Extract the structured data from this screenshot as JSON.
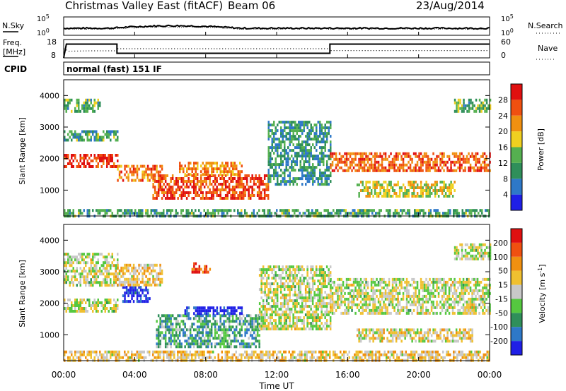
{
  "header": {
    "radar": "Christmas Valley East (fitACF)",
    "beam": "Beam 06",
    "date": "23/Aug/2014"
  },
  "nsky_panel": {
    "left_label": "N.Sky",
    "right_label": "N.Search",
    "left_ticks": [
      "10^5",
      "10^0"
    ],
    "right_ticks": [
      "10^5",
      "10^0"
    ]
  },
  "freq_panel": {
    "left_label_line1": "Freq.",
    "left_label_line2": "[MHz]",
    "right_label": "Nave",
    "left_ticks": [
      "18",
      "8"
    ],
    "right_ticks": [
      "60",
      "0"
    ],
    "freq_mhz": [
      [
        0.0,
        8
      ],
      [
        0.15,
        15.5
      ],
      [
        3.0,
        15.5
      ],
      [
        3.0,
        10.5
      ],
      [
        15.0,
        10.5
      ],
      [
        15.0,
        15.5
      ],
      [
        24.0,
        15.5
      ]
    ],
    "nave": [
      [
        0.0,
        30
      ],
      [
        0.3,
        22
      ],
      [
        1.5,
        23
      ],
      [
        3.0,
        23
      ],
      [
        3.0,
        30
      ],
      [
        15.0,
        30
      ],
      [
        15.0,
        24
      ],
      [
        24.0,
        24
      ]
    ]
  },
  "cpid": {
    "label": "CPID",
    "value": "normal (fast) 151 IF"
  },
  "x_axis": {
    "label": "Time UT",
    "ticks": [
      "00:00",
      "04:00",
      "08:00",
      "12:00",
      "16:00",
      "20:00",
      "00:00"
    ],
    "range_hours": [
      0,
      24
    ]
  },
  "chart_data": [
    {
      "type": "heatmap",
      "title": "Power",
      "xlabel": "Time UT",
      "ylabel": "Slant Range [km]",
      "ylim": [
        180,
        4500
      ],
      "yticks": [
        "1000",
        "2000",
        "3000",
        "4000"
      ],
      "colorbar": {
        "label": "Power [dB]",
        "ticks": [
          "4",
          "8",
          "12",
          "16",
          "20",
          "24",
          "28"
        ],
        "colors": [
          "#1f1fe6",
          "#2e78c8",
          "#2f8f5a",
          "#55b050",
          "#f0d020",
          "#f09010",
          "#f05010",
          "#e01010"
        ]
      },
      "echo_regions": [
        {
          "t0": 0.0,
          "t1": 3.0,
          "r0": 1750,
          "r1": 2150,
          "level": 0.9
        },
        {
          "t0": 0.0,
          "t1": 3.0,
          "r0": 2600,
          "r1": 2900,
          "level": 0.35
        },
        {
          "t0": 0.0,
          "t1": 2.0,
          "r0": 3500,
          "r1": 3900,
          "level": 0.4
        },
        {
          "t0": 3.0,
          "t1": 5.5,
          "r0": 1300,
          "r1": 1800,
          "level": 0.75
        },
        {
          "t0": 5.0,
          "t1": 11.5,
          "r0": 700,
          "r1": 1500,
          "level": 0.85
        },
        {
          "t0": 6.5,
          "t1": 10.0,
          "r0": 1500,
          "r1": 1900,
          "level": 0.7
        },
        {
          "t0": 11.5,
          "t1": 15.0,
          "r0": 1200,
          "r1": 3200,
          "level": 0.3
        },
        {
          "t0": 15.0,
          "t1": 24.0,
          "r0": 1600,
          "r1": 2200,
          "level": 0.8
        },
        {
          "t0": 16.5,
          "t1": 22.0,
          "r0": 800,
          "r1": 1300,
          "level": 0.55
        },
        {
          "t0": 22.0,
          "t1": 24.0,
          "r0": 3500,
          "r1": 3900,
          "level": 0.4
        },
        {
          "t0": 0.0,
          "t1": 24.0,
          "r0": 200,
          "r1": 400,
          "level": 0.35
        }
      ]
    },
    {
      "type": "heatmap",
      "title": "Velocity",
      "xlabel": "Time UT",
      "ylabel": "Slant Range [km]",
      "ylim": [
        180,
        4500
      ],
      "yticks": [
        "1000",
        "2000",
        "3000",
        "4000"
      ],
      "colorbar": {
        "label": "Velocity [m s^-1]",
        "ticks": [
          "200",
          "100",
          "50",
          "15",
          "-15",
          "-50",
          "-100",
          "-200"
        ],
        "colors": [
          "#1f1fe6",
          "#2e78c8",
          "#2f8f5a",
          "#55c840",
          "#c8c8c8",
          "#f0c030",
          "#f09010",
          "#f05010",
          "#e01010"
        ]
      },
      "echo_regions": [
        {
          "t0": 0.0,
          "t1": 3.0,
          "r0": 1750,
          "r1": 2150,
          "level": 0.5
        },
        {
          "t0": 0.0,
          "t1": 3.0,
          "r0": 2600,
          "r1": 3600,
          "level": 0.5
        },
        {
          "t0": 3.3,
          "t1": 4.8,
          "r0": 2050,
          "r1": 2550,
          "level": 0.05
        },
        {
          "t0": 3.0,
          "t1": 5.5,
          "r0": 2550,
          "r1": 3250,
          "level": 0.6
        },
        {
          "t0": 5.2,
          "t1": 11.0,
          "r0": 650,
          "r1": 1650,
          "level": 0.33
        },
        {
          "t0": 6.8,
          "t1": 10.0,
          "r0": 1680,
          "r1": 1900,
          "level": 0.02
        },
        {
          "t0": 7.2,
          "t1": 8.2,
          "r0": 3000,
          "r1": 3300,
          "level": 0.9
        },
        {
          "t0": 11.0,
          "t1": 15.0,
          "r0": 1200,
          "r1": 3200,
          "level": 0.5
        },
        {
          "t0": 15.0,
          "t1": 24.0,
          "r0": 1700,
          "r1": 2800,
          "level": 0.5
        },
        {
          "t0": 16.5,
          "t1": 23.0,
          "r0": 800,
          "r1": 1200,
          "level": 0.55
        },
        {
          "t0": 22.0,
          "t1": 24.0,
          "r0": 3400,
          "r1": 3900,
          "level": 0.5
        },
        {
          "t0": 0.0,
          "t1": 24.0,
          "r0": 200,
          "r1": 500,
          "level": 0.6
        }
      ]
    }
  ]
}
